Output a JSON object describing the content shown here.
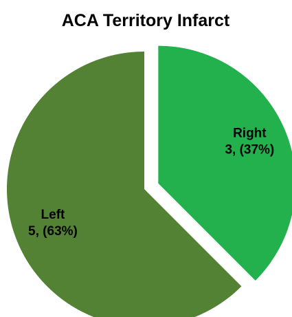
{
  "chart_data": {
    "type": "pie",
    "title": "ACA Territory Infarct",
    "categories": [
      "Right",
      "Left"
    ],
    "values": [
      3,
      5
    ],
    "value_labels": [
      "3, (37%)",
      "5, (63%)"
    ],
    "colors": [
      "#22b14c",
      "#548235"
    ],
    "exploded": [
      true,
      false
    ]
  }
}
